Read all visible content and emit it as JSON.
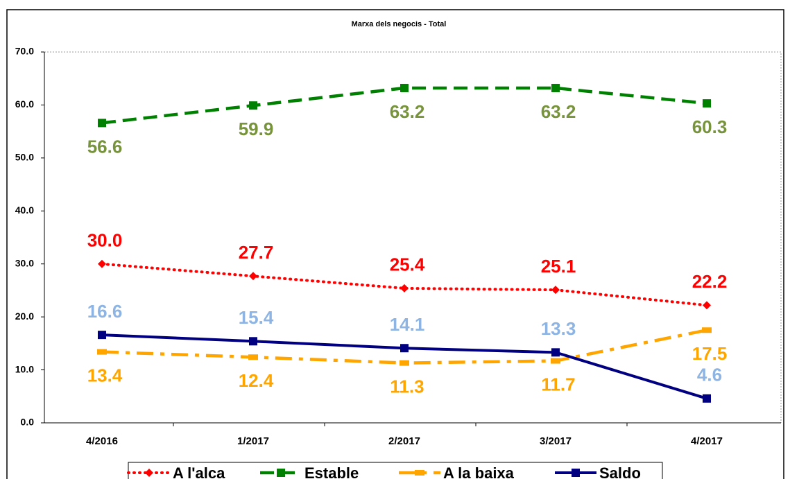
{
  "chart_data": {
    "type": "line",
    "title": "Marxa dels negocis - Total",
    "categories": [
      "4/2016",
      "1/2017",
      "2/2017",
      "3/2017",
      "4/2017"
    ],
    "ylim": [
      0,
      70
    ],
    "yticks": [
      {
        "value": 0,
        "label": "0.0"
      },
      {
        "value": 10,
        "label": "10.0"
      },
      {
        "value": 20,
        "label": "20.0"
      },
      {
        "value": 30,
        "label": "30.0"
      },
      {
        "value": 40,
        "label": "40.0"
      },
      {
        "value": 50,
        "label": "50.0"
      },
      {
        "value": 60,
        "label": "60.0"
      },
      {
        "value": 70,
        "label": "70.0"
      }
    ],
    "legend": "bottom",
    "series": [
      {
        "name": "A l'alca",
        "color": "#ff0000",
        "label_color": "#ff0000",
        "marker": "diamond",
        "dash": "dotted",
        "values": [
          30.0,
          27.7,
          25.4,
          25.1,
          22.2
        ],
        "value_labels": [
          "30.0",
          "27.7",
          "25.4",
          "25.1",
          "22.2"
        ]
      },
      {
        "name": "Estable",
        "color": "#008000",
        "label_color": "#77933c",
        "marker": "square",
        "dash": "dashed",
        "values": [
          56.6,
          59.9,
          63.2,
          63.2,
          60.3
        ],
        "value_labels": [
          "56.6",
          "59.9",
          "63.2",
          "63.2",
          "60.3"
        ]
      },
      {
        "name": "A la baixa",
        "color": "#ffa500",
        "label_color": "#ffa500",
        "marker": "dash",
        "dash": "dashdot",
        "values": [
          13.4,
          12.4,
          11.3,
          11.7,
          17.5
        ],
        "value_labels": [
          "13.4",
          "12.4",
          "11.3",
          "11.7",
          "17.5"
        ]
      },
      {
        "name": "Saldo",
        "color": "#000080",
        "label_color": "#8db4e2",
        "marker": "square",
        "dash": "solid",
        "values": [
          16.6,
          15.4,
          14.1,
          13.3,
          4.6
        ],
        "value_labels": [
          "16.6",
          "15.4",
          "14.1",
          "13.3",
          "4.6"
        ]
      }
    ]
  }
}
